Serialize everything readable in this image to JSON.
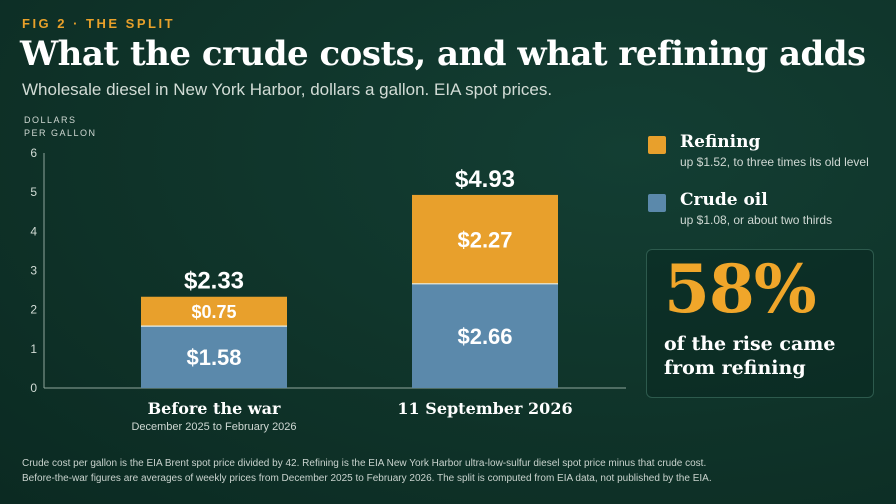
{
  "header": {
    "fig_label": "FIG 2 · THE SPLIT",
    "title": "What the crude costs, and what refining adds",
    "subtitle": "Wholesale diesel in New York Harbor, dollars a gallon. EIA spot prices."
  },
  "legend": {
    "refining": {
      "title": "Refining",
      "note": "up $1.52, to three times its old level"
    },
    "crude": {
      "title": "Crude oil",
      "note": "up $1.08, or about two thirds"
    }
  },
  "callout": {
    "value": "58%",
    "text": "of the rise came from refining"
  },
  "footnote": [
    "Crude cost per gallon is the EIA Brent spot price divided by 42. Refining is the EIA New York Harbor ultra-low-sulfur diesel spot price minus that crude cost.",
    "Before-the-war figures are averages of weekly prices from December 2025 to February 2026. The split is computed from EIA data, not published by the EIA."
  ],
  "colors": {
    "refining": "#e8a02c",
    "crude": "#5b89ab",
    "accent": "#e9a12a"
  },
  "chart_data": {
    "type": "bar",
    "stacked": true,
    "ylabel_lines": [
      "DOLLARS",
      "PER GALLON"
    ],
    "ylim": [
      0,
      6
    ],
    "yticks": [
      "0",
      "1",
      "2",
      "3",
      "4",
      "5",
      "6"
    ],
    "categories": [
      "Before the war",
      "11 September 2026"
    ],
    "category_sublabels": [
      "December 2025 to February 2026",
      ""
    ],
    "series": [
      {
        "name": "Crude oil",
        "values": [
          1.58,
          2.66
        ],
        "labels": [
          "$1.58",
          "$2.66"
        ]
      },
      {
        "name": "Refining",
        "values": [
          0.75,
          2.27
        ],
        "labels": [
          "$0.75",
          "$2.27"
        ]
      }
    ],
    "totals": [
      2.33,
      4.93
    ],
    "total_labels": [
      "$2.33",
      "$4.93"
    ],
    "grid": false
  }
}
